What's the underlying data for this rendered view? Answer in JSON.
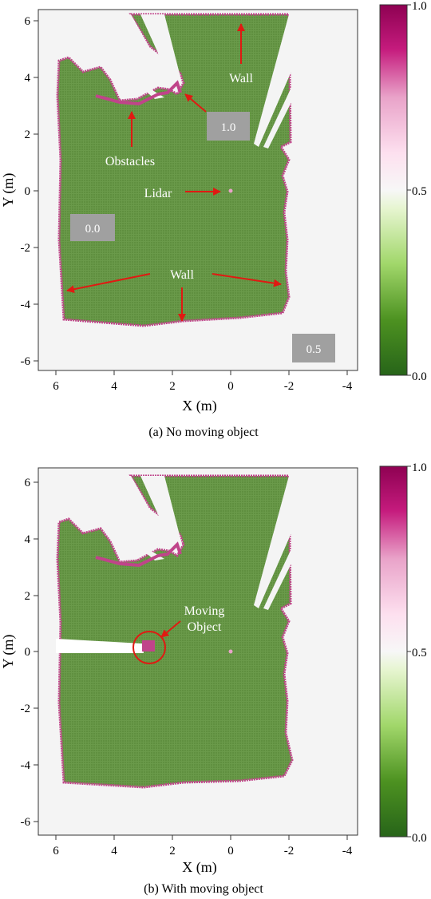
{
  "chart_data": [
    {
      "type": "heatmap",
      "title": "",
      "caption": "(a) No moving object",
      "xlabel": "X (m)",
      "ylabel": "Y (m)",
      "xlim": [
        6.6,
        -4.4
      ],
      "ylim": [
        -6.5,
        6.5
      ],
      "x_ticks": [
        "6",
        "4",
        "2",
        "0",
        "-2",
        "-4"
      ],
      "y_ticks": [
        "6",
        "4",
        "2",
        "0",
        "-2",
        "-4",
        "-6"
      ],
      "colorbar": {
        "min": "0.0",
        "mid": "0.5",
        "max": "1.0",
        "low_color": "#276419",
        "mid_color": "#f7f7f7",
        "high_color": "#8e0152"
      },
      "cell_values": {
        "free_space": 0.1,
        "walls_and_obstacles": 1.0,
        "unknown": 0.5
      },
      "value_boxes": [
        "1.0",
        "0.0",
        "0.5"
      ],
      "annotations": [
        "Wall",
        "Obstacles",
        "Lidar",
        "Wall"
      ],
      "lidar_position": [
        0,
        0
      ]
    },
    {
      "type": "heatmap",
      "title": "",
      "caption": "(b) With moving object",
      "xlabel": "X (m)",
      "ylabel": "Y (m)",
      "xlim": [
        6.6,
        -4.4
      ],
      "ylim": [
        -6.5,
        6.5
      ],
      "x_ticks": [
        "6",
        "4",
        "2",
        "0",
        "-2",
        "-4"
      ],
      "y_ticks": [
        "6",
        "4",
        "2",
        "0",
        "-2",
        "-4",
        "-6"
      ],
      "colorbar": {
        "min": "0.0",
        "mid": "0.5",
        "max": "1.0",
        "low_color": "#276419",
        "mid_color": "#f7f7f7",
        "high_color": "#8e0152"
      },
      "annotations": [
        "Moving",
        "Object"
      ],
      "moving_object_position": [
        2.8,
        0.1
      ]
    }
  ]
}
